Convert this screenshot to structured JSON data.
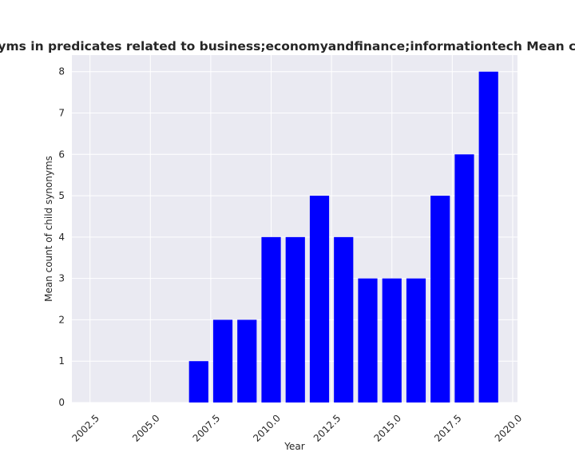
{
  "chart_data": {
    "type": "bar",
    "title": "Mean count of child synonyms in predicates related to business;economyandfinance;informationtech Mean count of child synonyms in pr",
    "xlabel": "Year",
    "ylabel": "Mean count of child synonyms",
    "x": [
      2007,
      2008,
      2009,
      2010,
      2011,
      2012,
      2013,
      2014,
      2015,
      2016,
      2017,
      2018,
      2019
    ],
    "values": [
      1,
      2,
      2,
      4,
      4,
      5,
      4,
      3,
      3,
      3,
      5,
      6,
      8
    ],
    "xlim": [
      2001.75,
      2020.2
    ],
    "ylim": [
      0,
      8.4
    ],
    "xticks": [
      2002.5,
      2005.0,
      2007.5,
      2010.0,
      2012.5,
      2015.0,
      2017.5,
      2020.0
    ],
    "xtick_labels": [
      "2002.5",
      "2005.0",
      "2007.5",
      "2010.0",
      "2012.5",
      "2015.0",
      "2017.5",
      "2020.0"
    ],
    "yticks": [
      0,
      1,
      2,
      3,
      4,
      5,
      6,
      7,
      8
    ],
    "ytick_labels": [
      "0",
      "1",
      "2",
      "3",
      "4",
      "5",
      "6",
      "7",
      "8"
    ],
    "grid": true,
    "colors": {
      "bar": "#0000ff",
      "plot_bg": "#eaeaf2",
      "grid": "#ffffff"
    }
  }
}
